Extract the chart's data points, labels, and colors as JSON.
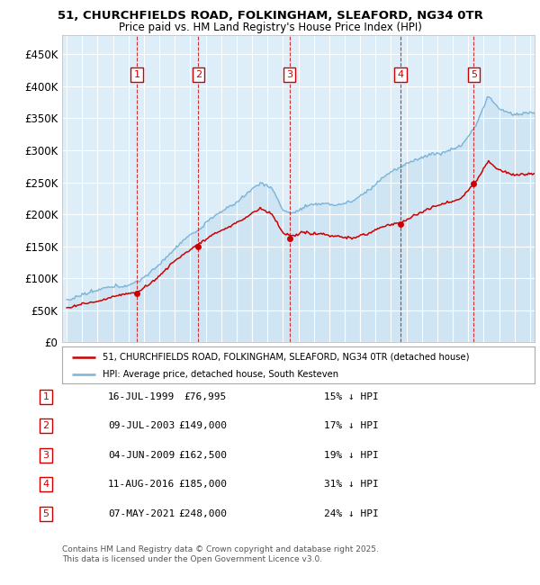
{
  "title_line1": "51, CHURCHFIELDS ROAD, FOLKINGHAM, SLEAFORD, NG34 0TR",
  "title_line2": "Price paid vs. HM Land Registry's House Price Index (HPI)",
  "ylim": [
    0,
    480000
  ],
  "yticks": [
    0,
    50000,
    100000,
    150000,
    200000,
    250000,
    300000,
    350000,
    400000,
    450000
  ],
  "ytick_labels": [
    "£0",
    "£50K",
    "£100K",
    "£150K",
    "£200K",
    "£250K",
    "£300K",
    "£350K",
    "£400K",
    "£450K"
  ],
  "xlim_start": 1994.7,
  "xlim_end": 2025.3,
  "hpi_color": "#7ab4d8",
  "hpi_fill_color": "#c8dff0",
  "price_color": "#cc0000",
  "sale_dates": [
    1999.54,
    2003.52,
    2009.42,
    2016.61,
    2021.35
  ],
  "sale_prices": [
    76995,
    149000,
    162500,
    185000,
    248000
  ],
  "sale_labels": [
    "1",
    "2",
    "3",
    "4",
    "5"
  ],
  "sale_date_labels": [
    "16-JUL-1999",
    "09-JUL-2003",
    "04-JUN-2009",
    "11-AUG-2016",
    "07-MAY-2021"
  ],
  "sale_price_labels": [
    "£76,995",
    "£149,000",
    "£162,500",
    "£185,000",
    "£248,000"
  ],
  "sale_hpi_labels": [
    "15% ↓ HPI",
    "17% ↓ HPI",
    "19% ↓ HPI",
    "31% ↓ HPI",
    "24% ↓ HPI"
  ],
  "legend_line1": "51, CHURCHFIELDS ROAD, FOLKINGHAM, SLEAFORD, NG34 0TR (detached house)",
  "legend_line2": "HPI: Average price, detached house, South Kesteven",
  "footnote": "Contains HM Land Registry data © Crown copyright and database right 2025.\nThis data is licensed under the Open Government Licence v3.0.",
  "background_color": "#ffffff",
  "plot_bg_color": "#ddeef8"
}
